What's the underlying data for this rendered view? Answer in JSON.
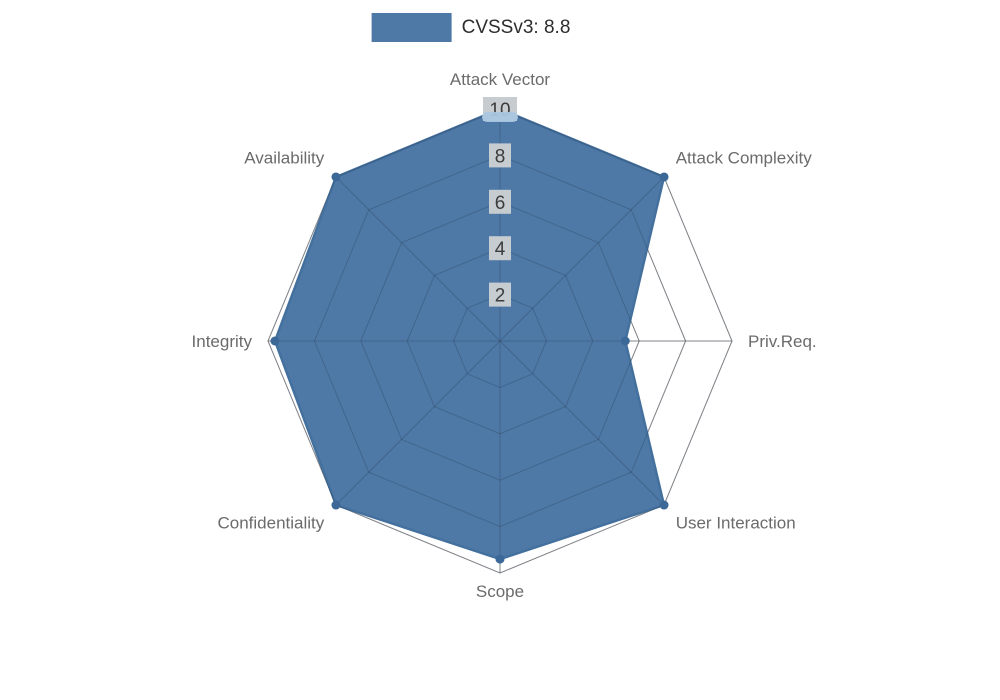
{
  "legend": {
    "label": "CVSSv3: 8.8",
    "swatch_color": "#4e79a7"
  },
  "chart_data": {
    "type": "radar",
    "title": "CVSSv3: 8.8",
    "axes": [
      "Attack Vector",
      "Attack Complexity",
      "Priv.Req.",
      "User Interaction",
      "Scope",
      "Confidentiality",
      "Integrity",
      "Availability"
    ],
    "series": [
      {
        "name": "CVSSv3: 8.8",
        "values": [
          10,
          10,
          5.4,
          10,
          9.4,
          10,
          9.7,
          10
        ]
      }
    ],
    "scale": {
      "min": 0,
      "max": 10,
      "ticks": [
        2,
        4,
        6,
        8,
        10
      ]
    },
    "legend_position": "top",
    "grid": true,
    "colors": {
      "fill": "#4e79a7",
      "stroke": "#44709e",
      "point": "#3c6898",
      "point_highlight": "#a9c6df",
      "grid": "#a3a3a3",
      "grid_overlay": "rgba(35,50,70,0.28)",
      "tick_backdrop": "#c7ccd1",
      "tick_text": "#3c3c3c",
      "axis_label": "#6b6b6b"
    }
  }
}
